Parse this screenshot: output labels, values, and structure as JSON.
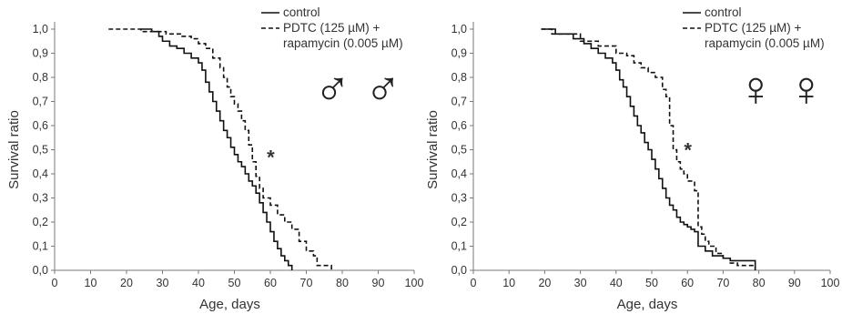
{
  "chart_data": [
    {
      "type": "line",
      "step": true,
      "xlabel": "Age, days",
      "ylabel": "Survival ratio",
      "xlim": [
        0,
        100
      ],
      "ylim": [
        0,
        1.0
      ],
      "xticks": [
        "0",
        "10",
        "20",
        "30",
        "40",
        "50",
        "60",
        "70",
        "80",
        "90",
        "100"
      ],
      "yticks": [
        "0,0",
        "0,1",
        "0,2",
        "0,3",
        "0,4",
        "0,5",
        "0,6",
        "0,7",
        "0,8",
        "0,9",
        "1,0"
      ],
      "annotation": "*",
      "annotation_at": [
        58,
        0.47
      ],
      "symbol": "♂ ♂",
      "legend_position": "top-right",
      "series": [
        {
          "name": "control",
          "dash": "solid",
          "x": [
            24,
            27,
            29,
            30,
            32,
            34,
            36,
            38,
            40,
            41,
            42,
            43,
            44,
            45,
            46,
            47,
            48,
            49,
            50,
            51,
            52,
            53,
            54,
            55,
            56,
            57,
            58,
            59,
            60,
            61,
            62,
            63,
            64,
            65,
            66
          ],
          "y": [
            1.0,
            0.99,
            0.97,
            0.95,
            0.93,
            0.92,
            0.9,
            0.88,
            0.86,
            0.83,
            0.78,
            0.74,
            0.7,
            0.66,
            0.62,
            0.58,
            0.55,
            0.51,
            0.48,
            0.45,
            0.43,
            0.4,
            0.37,
            0.35,
            0.32,
            0.28,
            0.24,
            0.2,
            0.16,
            0.12,
            0.09,
            0.06,
            0.04,
            0.02,
            0.0
          ]
        },
        {
          "name": "PDTC (125 µM) + rapamycin (0.005 µM)",
          "dash": "dashed",
          "x": [
            15,
            24,
            31,
            35,
            38,
            40,
            42,
            44,
            46,
            47,
            48,
            49,
            50,
            51,
            52,
            53,
            54,
            55,
            56,
            57,
            58,
            60,
            62,
            64,
            66,
            68,
            70,
            72,
            73,
            77
          ],
          "y": [
            1.0,
            0.99,
            0.98,
            0.97,
            0.96,
            0.94,
            0.92,
            0.88,
            0.84,
            0.8,
            0.76,
            0.72,
            0.69,
            0.66,
            0.62,
            0.58,
            0.52,
            0.45,
            0.39,
            0.34,
            0.3,
            0.27,
            0.23,
            0.2,
            0.17,
            0.12,
            0.08,
            0.06,
            0.02,
            0.0
          ]
        }
      ]
    },
    {
      "type": "line",
      "step": true,
      "xlabel": "Age, days",
      "ylabel": "Survival ratio",
      "xlim": [
        0,
        100
      ],
      "ylim": [
        0,
        1.0
      ],
      "xticks": [
        "0",
        "10",
        "20",
        "30",
        "40",
        "50",
        "60",
        "70",
        "80",
        "90",
        "100"
      ],
      "yticks": [
        "0,0",
        "0,1",
        "0,2",
        "0,3",
        "0,4",
        "0,5",
        "0,6",
        "0,7",
        "0,8",
        "0,9",
        "1,0"
      ],
      "annotation": "*",
      "annotation_at": [
        58,
        0.5
      ],
      "symbol": "♀ ♀",
      "legend_position": "top-right",
      "series": [
        {
          "name": "control",
          "dash": "solid",
          "x": [
            19,
            23,
            28,
            31,
            33,
            35,
            37,
            39,
            40,
            41,
            42,
            43,
            44,
            45,
            46,
            47,
            48,
            49,
            50,
            51,
            52,
            53,
            54,
            55,
            56,
            57,
            58,
            59,
            60,
            61,
            62,
            63,
            65,
            67,
            70,
            72,
            79
          ],
          "y": [
            1.0,
            0.98,
            0.96,
            0.94,
            0.92,
            0.9,
            0.88,
            0.86,
            0.83,
            0.79,
            0.76,
            0.72,
            0.68,
            0.64,
            0.6,
            0.57,
            0.53,
            0.5,
            0.46,
            0.42,
            0.38,
            0.34,
            0.3,
            0.27,
            0.25,
            0.22,
            0.2,
            0.19,
            0.18,
            0.17,
            0.16,
            0.1,
            0.08,
            0.06,
            0.05,
            0.04,
            0.0
          ]
        },
        {
          "name": "PDTC (125 µM) + rapamycin (0.005 µM)",
          "dash": "dashed",
          "x": [
            19,
            22,
            30,
            35,
            40,
            43,
            45,
            47,
            49,
            51,
            53,
            54,
            55,
            56,
            57,
            58,
            59,
            60,
            62,
            63,
            64,
            65,
            66,
            68,
            70,
            72,
            74,
            79
          ],
          "y": [
            1.0,
            0.98,
            0.95,
            0.93,
            0.9,
            0.89,
            0.86,
            0.84,
            0.82,
            0.8,
            0.75,
            0.72,
            0.6,
            0.5,
            0.45,
            0.42,
            0.4,
            0.37,
            0.33,
            0.18,
            0.15,
            0.12,
            0.1,
            0.07,
            0.05,
            0.03,
            0.02,
            0.0
          ]
        }
      ]
    }
  ]
}
